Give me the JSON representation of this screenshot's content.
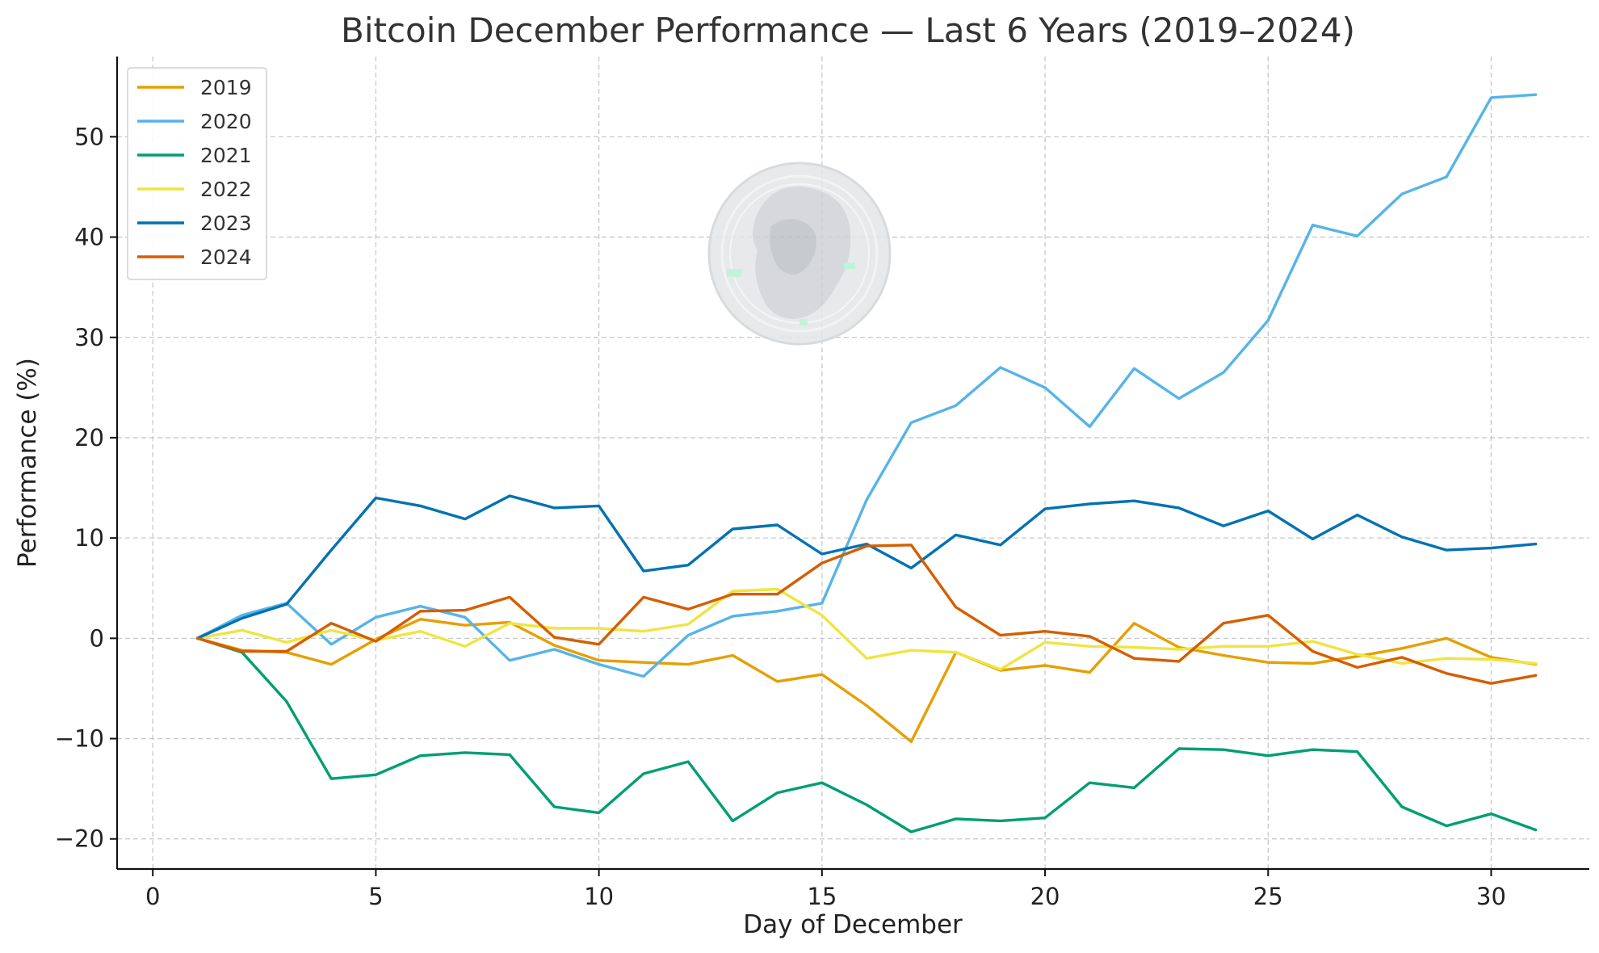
{
  "chart_data": {
    "type": "line",
    "title": "Bitcoin December Performance — Last 6 Years (2019–2024)",
    "xlabel": "Day of December",
    "ylabel": "Performance (%)",
    "xlim": [
      -0.8,
      32.2
    ],
    "ylim": [
      -23,
      58
    ],
    "xticks": [
      0,
      5,
      10,
      15,
      20,
      25,
      30
    ],
    "yticks": [
      -20,
      -10,
      0,
      10,
      20,
      30,
      40,
      50
    ],
    "grid": true,
    "legend_position": "top-left",
    "x": [
      1,
      2,
      3,
      4,
      5,
      6,
      7,
      8,
      9,
      10,
      11,
      12,
      13,
      14,
      15,
      16,
      17,
      18,
      19,
      20,
      21,
      22,
      23,
      24,
      25,
      26,
      27,
      28,
      29,
      30,
      31
    ],
    "series": [
      {
        "name": "2019",
        "color": "#E69F00",
        "values": [
          0,
          -1.2,
          -1.4,
          -2.6,
          -0.1,
          1.9,
          1.3,
          1.6,
          -0.7,
          -2.2,
          -2.4,
          -2.6,
          -1.7,
          -4.3,
          -3.6,
          -6.7,
          -10.3,
          -1.4,
          -3.2,
          -2.7,
          -3.4,
          1.5,
          -0.9,
          -1.7,
          -2.4,
          -2.5,
          -1.8,
          -1.0,
          0,
          -1.9,
          -2.6
        ]
      },
      {
        "name": "2020",
        "color": "#56B4E9",
        "values": [
          0,
          2.3,
          3.5,
          -0.6,
          2.1,
          3.2,
          2.1,
          -2.2,
          -1.1,
          -2.6,
          -3.8,
          0.3,
          2.2,
          2.7,
          3.5,
          13.8,
          21.5,
          23.2,
          27,
          25,
          21.1,
          26.9,
          23.9,
          26.5,
          31.7,
          41.2,
          40.1,
          44.3,
          46,
          53.9,
          54.2
        ]
      },
      {
        "name": "2021",
        "color": "#009E73",
        "values": [
          0,
          -1.4,
          -6.3,
          -14,
          -13.6,
          -11.7,
          -11.4,
          -11.6,
          -16.8,
          -17.4,
          -13.5,
          -12.3,
          -18.2,
          -15.4,
          -14.4,
          -16.6,
          -19.3,
          -18,
          -18.2,
          -17.9,
          -14.4,
          -14.9,
          -11,
          -11.1,
          -11.7,
          -11.1,
          -11.3,
          -16.8,
          -18.7,
          -17.5,
          -19.1
        ]
      },
      {
        "name": "2022",
        "color": "#F0E442",
        "values": [
          0,
          0.8,
          -0.4,
          0.8,
          -0.2,
          0.7,
          -0.8,
          1.5,
          1,
          1,
          0.7,
          1.4,
          4.7,
          4.9,
          2.3,
          -2,
          -1.2,
          -1.4,
          -3.1,
          -0.4,
          -0.8,
          -0.9,
          -1.1,
          -0.8,
          -0.8,
          -0.3,
          -1.6,
          -2.5,
          -2,
          -2.1,
          -2.5
        ]
      },
      {
        "name": "2023",
        "color": "#0072B2",
        "values": [
          0,
          2,
          3.4,
          8.8,
          14,
          13.2,
          11.9,
          14.2,
          13,
          13.2,
          6.7,
          7.3,
          10.9,
          11.3,
          8.4,
          9.4,
          7,
          10.3,
          9.3,
          12.9,
          13.4,
          13.7,
          13,
          11.2,
          12.7,
          9.9,
          12.3,
          10.1,
          8.8,
          9,
          9.4
        ]
      },
      {
        "name": "2024",
        "color": "#D55E00",
        "values": [
          0,
          -1.3,
          -1.3,
          1.5,
          -0.3,
          2.7,
          2.8,
          4.1,
          0.1,
          -0.6,
          4.1,
          2.9,
          4.4,
          4.4,
          7.5,
          9.2,
          9.3,
          3.1,
          0.3,
          0.7,
          0.2,
          -2,
          -2.3,
          1.5,
          2.3,
          -1.3,
          -2.9,
          -1.9,
          -3.5,
          -4.5,
          -3.7
        ]
      }
    ]
  },
  "watermark": {
    "icon": "bitcoin-coin-portrait-icon"
  }
}
